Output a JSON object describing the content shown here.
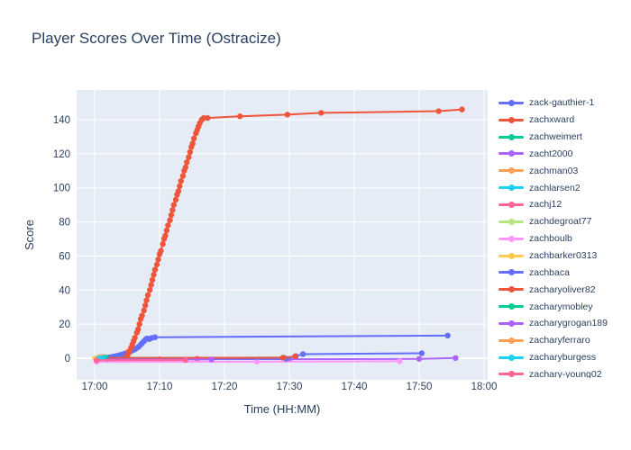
{
  "colors": {
    "paper_bg": "#FFFFFF",
    "plot_bg": "#E5ECF6",
    "grid": "#FFFFFF",
    "text": "#2a3f5f"
  },
  "chart_data": {
    "type": "line",
    "title": "Player Scores Over Time (Ostracize)",
    "xlabel": "Time (HH:MM)",
    "ylabel": "Score",
    "x_encoding": "minutes after 17:00",
    "x_ticks": [
      {
        "minute": 0,
        "label": "17:00"
      },
      {
        "minute": 10,
        "label": "17:10"
      },
      {
        "minute": 20,
        "label": "17:20"
      },
      {
        "minute": 30,
        "label": "17:30"
      },
      {
        "minute": 40,
        "label": "17:40"
      },
      {
        "minute": 50,
        "label": "17:50"
      },
      {
        "minute": 60,
        "label": "18:00"
      }
    ],
    "y_ticks": [
      0,
      20,
      40,
      60,
      80,
      100,
      120,
      140
    ],
    "x_range_minutes": [
      -2.8,
      60.6
    ],
    "y_range": [
      -12.7,
      157.4
    ],
    "grid": true,
    "legend_position": "right",
    "series": [
      {
        "name": "zack-gauthier-1",
        "color": "#636EFA",
        "points": [
          [
            1.5,
            0
          ],
          [
            1.9,
            0.2
          ],
          [
            2.3,
            0.5
          ],
          [
            2.7,
            0.8
          ],
          [
            3.1,
            1.1
          ],
          [
            3.5,
            1.5
          ],
          [
            3.9,
            1.9
          ],
          [
            4.3,
            2.3
          ],
          [
            4.7,
            2.8
          ],
          [
            5.1,
            3.3
          ],
          [
            5.5,
            3.9
          ],
          [
            5.9,
            4.6
          ],
          [
            6.3,
            5.4
          ],
          [
            6.7,
            6.5
          ],
          [
            7.0,
            7.6
          ],
          [
            7.3,
            8.8
          ],
          [
            7.6,
            10.0
          ],
          [
            7.9,
            11.2
          ],
          [
            8.1,
            11.6
          ],
          [
            8.4,
            11.2
          ],
          [
            8.8,
            11.9
          ],
          [
            9.3,
            12.3
          ],
          [
            54.4,
            13.3
          ]
        ]
      },
      {
        "name": "zachxward",
        "color": "#EF553B",
        "points": [
          [
            4.7,
            0
          ],
          [
            4.9,
            1
          ],
          [
            5.1,
            2
          ],
          [
            5.3,
            4
          ],
          [
            5.6,
            6
          ],
          [
            5.8,
            8
          ],
          [
            6.0,
            10
          ],
          [
            6.2,
            12
          ],
          [
            6.5,
            15
          ],
          [
            6.7,
            17
          ],
          [
            6.9,
            20
          ],
          [
            7.1,
            23
          ],
          [
            7.3,
            25
          ],
          [
            7.6,
            28
          ],
          [
            7.8,
            31
          ],
          [
            8.0,
            34
          ],
          [
            8.2,
            37
          ],
          [
            8.5,
            40
          ],
          [
            8.7,
            43
          ],
          [
            8.9,
            46
          ],
          [
            9.1,
            49
          ],
          [
            9.3,
            52
          ],
          [
            9.6,
            55
          ],
          [
            9.8,
            58
          ],
          [
            10.0,
            61
          ],
          [
            10.2,
            63
          ],
          [
            10.5,
            67
          ],
          [
            10.7,
            70
          ],
          [
            10.9,
            72
          ],
          [
            11.1,
            75
          ],
          [
            11.3,
            78
          ],
          [
            11.6,
            81
          ],
          [
            11.8,
            84
          ],
          [
            12.0,
            87
          ],
          [
            12.2,
            90
          ],
          [
            12.5,
            93
          ],
          [
            12.7,
            96
          ],
          [
            12.9,
            98
          ],
          [
            13.1,
            101
          ],
          [
            13.3,
            104
          ],
          [
            13.6,
            107
          ],
          [
            13.8,
            110
          ],
          [
            14.0,
            112
          ],
          [
            14.2,
            115
          ],
          [
            14.5,
            118
          ],
          [
            14.7,
            121
          ],
          [
            14.9,
            124
          ],
          [
            15.1,
            126
          ],
          [
            15.3,
            129
          ],
          [
            15.6,
            132
          ],
          [
            15.8,
            134
          ],
          [
            16.0,
            136
          ],
          [
            16.2,
            138
          ],
          [
            16.5,
            140
          ],
          [
            16.8,
            141
          ],
          [
            17.4,
            141
          ],
          [
            22.4,
            142
          ],
          [
            29.7,
            143
          ],
          [
            34.9,
            144
          ],
          [
            53.0,
            145
          ],
          [
            56.6,
            146
          ]
        ]
      },
      {
        "name": "zachweimert",
        "color": "#00CC96",
        "points": [
          [
            0.8,
            0.2
          ],
          [
            29.1,
            0.3
          ]
        ]
      },
      {
        "name": "zacht2000",
        "color": "#AB63FA",
        "points": [
          [
            0.4,
            -0.6
          ],
          [
            30,
            -0.6
          ],
          [
            50,
            -0.4
          ],
          [
            55.6,
            0.1
          ]
        ]
      },
      {
        "name": "zachman03",
        "color": "#FFA15A",
        "points": [
          [
            0.9,
            0.7
          ],
          [
            1.3,
            0.8
          ]
        ]
      },
      {
        "name": "zachlarsen2",
        "color": "#19D3F3",
        "points": [
          [
            0.5,
            0.0
          ],
          [
            1.6,
            0.1
          ]
        ]
      },
      {
        "name": "zachj12",
        "color": "#FF6692",
        "points": [
          [
            0.3,
            -0.8
          ],
          [
            10,
            -0.6
          ],
          [
            15.8,
            -0.3
          ]
        ]
      },
      {
        "name": "zachdegroat77",
        "color": "#B6E880",
        "points": [
          [
            0.6,
            0.15
          ],
          [
            1.1,
            0.2
          ]
        ]
      },
      {
        "name": "zachboulb",
        "color": "#FF97FF",
        "points": [
          [
            0.3,
            -2.2
          ],
          [
            25,
            -2.1
          ],
          [
            47.0,
            -1.8
          ]
        ]
      },
      {
        "name": "zachbarker0313",
        "color": "#FECB52",
        "points": [
          [
            0.05,
            -0.2
          ],
          [
            0.6,
            -0.1
          ]
        ]
      },
      {
        "name": "zachbaca",
        "color": "#636EFA",
        "points": [
          [
            2.0,
            -0.3
          ],
          [
            29.5,
            -0.3
          ],
          [
            31.0,
            1.2
          ],
          [
            32.1,
            2.4
          ],
          [
            50.4,
            2.9
          ]
        ]
      },
      {
        "name": "zacharyoliver82",
        "color": "#EF553B",
        "points": [
          [
            1.0,
            0.1
          ],
          [
            29.0,
            0.3
          ],
          [
            30.9,
            1.1
          ]
        ]
      },
      {
        "name": "zacharymobley",
        "color": "#00CC96",
        "points": [
          [
            1.2,
            0.4
          ],
          [
            1.7,
            0.4
          ]
        ]
      },
      {
        "name": "zacharygrogan189",
        "color": "#AB63FA",
        "points": [
          [
            0.5,
            -0.7
          ],
          [
            18,
            -0.7
          ]
        ]
      },
      {
        "name": "zacharyferraro",
        "color": "#FFA15A",
        "points": [
          [
            0.7,
            0.4
          ],
          [
            1.1,
            0.5
          ]
        ]
      },
      {
        "name": "zacharyburgess",
        "color": "#19D3F3",
        "points": [
          [
            0.6,
            -0.1
          ],
          [
            1.2,
            0.0
          ]
        ]
      },
      {
        "name": "zachary-young02",
        "color": "#FF6692",
        "points": [
          [
            0.3,
            -1.2
          ],
          [
            14.0,
            -1.1
          ]
        ]
      }
    ]
  }
}
